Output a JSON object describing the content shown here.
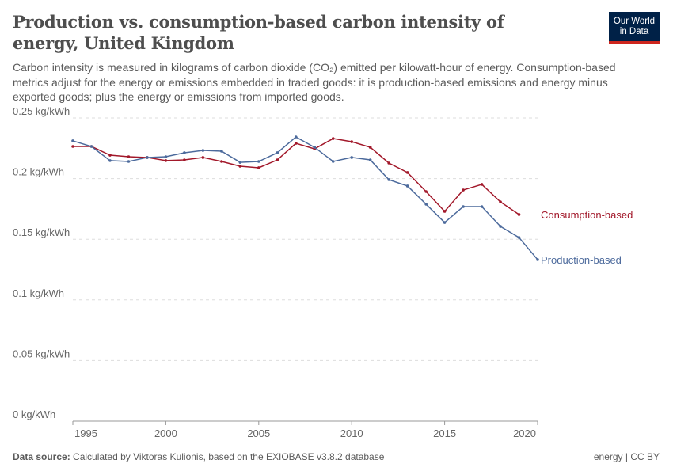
{
  "title": "Production vs. consumption-based carbon intensity of energy, United Kingdom",
  "subtitle": "Carbon intensity is measured in kilograms of carbon dioxide (CO₂) emitted per kilowatt-hour of energy. Consumption-based metrics adjust for the energy or emissions embedded in traded goods: it is production-based emissions and energy minus exported goods; plus the energy or emissions from imported goods.",
  "logo": "Our World in Data",
  "footer": {
    "source_label": "Data source:",
    "source": "Calculated by Viktoras Kulionis, based on the EXIOBASE v3.8.2 database",
    "license": "energy | CC BY"
  },
  "chart_data": {
    "type": "line",
    "title": "Production vs. consumption-based carbon intensity of energy, United Kingdom",
    "xlim": [
      1995,
      2020
    ],
    "ylim": [
      0,
      0.25
    ],
    "grid": "horizontal dashed",
    "legend": "inline-right",
    "x_ticks": [
      1995,
      2000,
      2005,
      2010,
      2015,
      2020
    ],
    "y_ticks": [
      {
        "v": 0,
        "label": "0 kg/kWh"
      },
      {
        "v": 0.05,
        "label": "0.05 kg/kWh"
      },
      {
        "v": 0.1,
        "label": "0.1 kg/kWh"
      },
      {
        "v": 0.15,
        "label": "0.15 kg/kWh"
      },
      {
        "v": 0.2,
        "label": "0.2 kg/kWh"
      },
      {
        "v": 0.25,
        "label": "0.25 kg/kWh"
      }
    ],
    "series": [
      {
        "name": "Consumption-based",
        "color": "#a2182a",
        "x": [
          1995,
          1996,
          1997,
          1998,
          1999,
          2000,
          2001,
          2002,
          2003,
          2004,
          2005,
          2006,
          2007,
          2008,
          2009,
          2010,
          2011,
          2012,
          2013,
          2014,
          2015,
          2016,
          2017,
          2018,
          2019
        ],
        "values": [
          0.2265,
          0.2265,
          0.2193,
          0.218,
          0.2174,
          0.2148,
          0.2154,
          0.2174,
          0.2141,
          0.2102,
          0.2089,
          0.2154,
          0.2291,
          0.2245,
          0.233,
          0.2304,
          0.2258,
          0.2128,
          0.205,
          0.1893,
          0.173,
          0.1906,
          0.1952,
          0.1808,
          0.1704
        ]
      },
      {
        "name": "Production-based",
        "color": "#4c6a9c",
        "x": [
          1995,
          1996,
          1997,
          1998,
          1999,
          2000,
          2001,
          2002,
          2003,
          2004,
          2005,
          2006,
          2007,
          2008,
          2009,
          2010,
          2011,
          2012,
          2013,
          2014,
          2015,
          2016,
          2017,
          2018,
          2019,
          2020
        ],
        "values": [
          0.2311,
          0.2265,
          0.2148,
          0.2141,
          0.2174,
          0.218,
          0.2213,
          0.2232,
          0.2226,
          0.2134,
          0.2141,
          0.2213,
          0.2343,
          0.2258,
          0.2141,
          0.2174,
          0.2154,
          0.1991,
          0.1939,
          0.1789,
          0.1638,
          0.1769,
          0.1769,
          0.1606,
          0.1514,
          0.1332
        ]
      }
    ]
  }
}
